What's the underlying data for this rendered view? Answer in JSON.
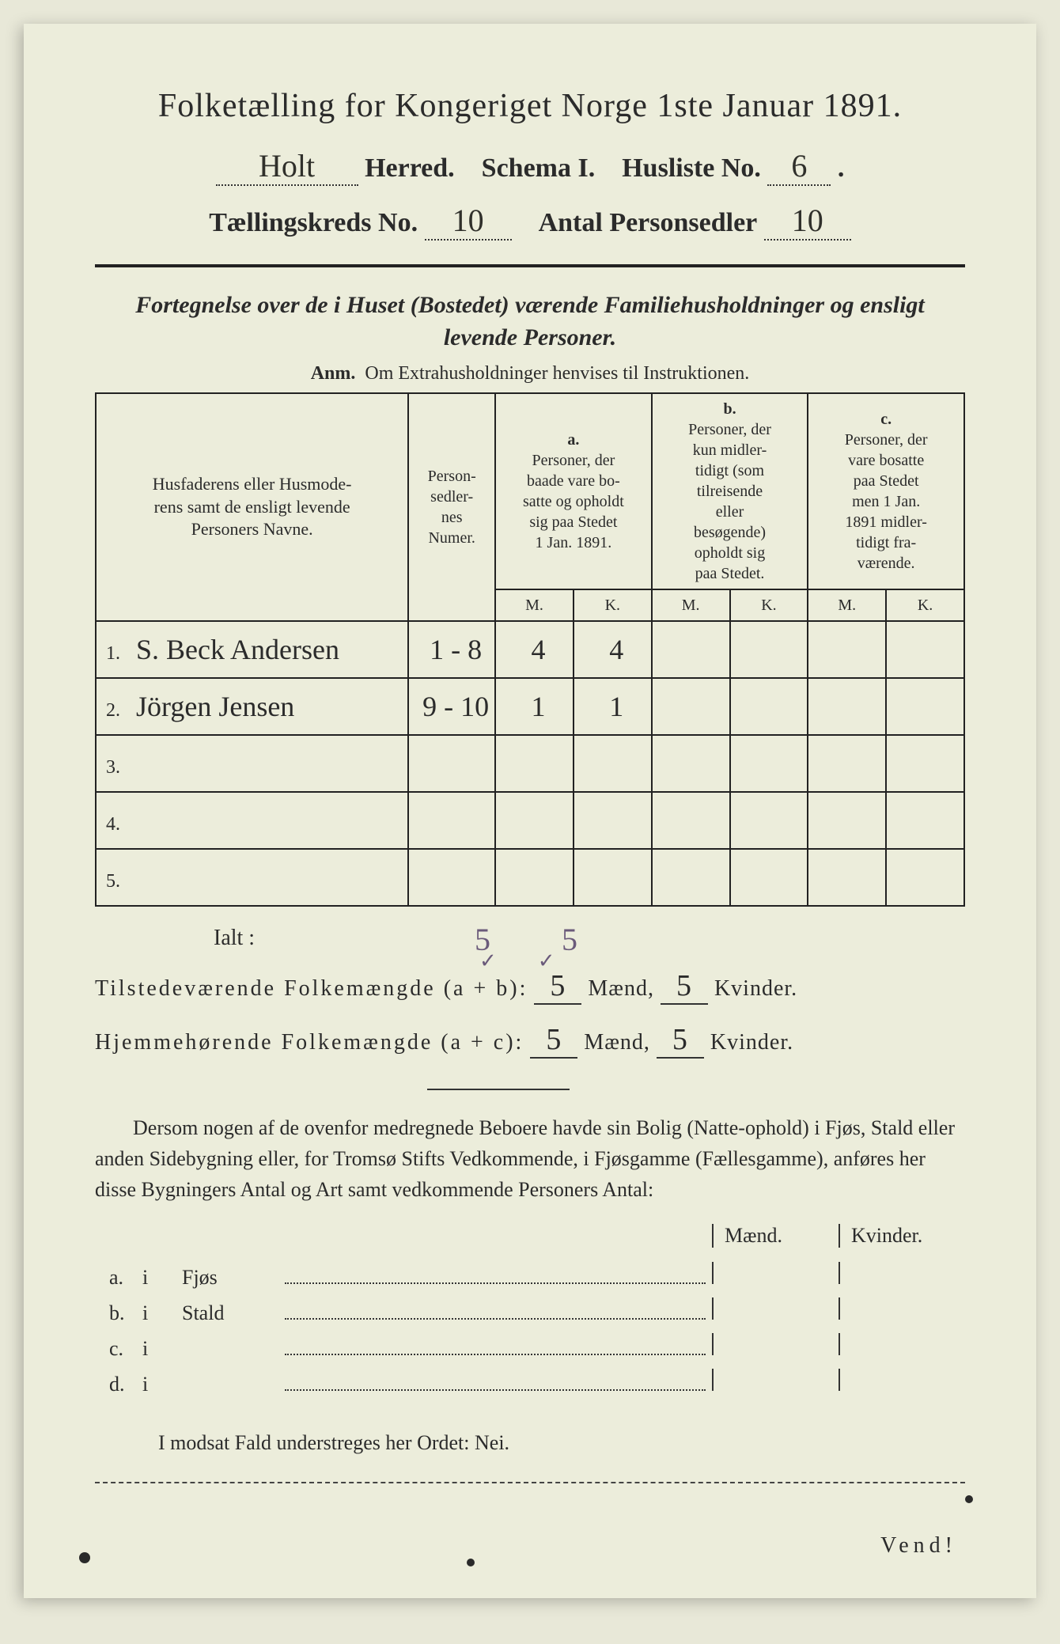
{
  "title": "Folketælling for Kongeriget Norge 1ste Januar 1891.",
  "herred_value": "Holt",
  "herred_label": "Herred.",
  "schema_label": "Schema I.",
  "husliste_label": "Husliste No.",
  "husliste_no": "6",
  "kreds_label": "Tællingskreds No.",
  "kreds_no": "10",
  "antal_label": "Antal Personsedler",
  "antal_no": "10",
  "section_heading_1": "Fortegnelse over de i Huset (Bostedet) værende Familiehusholdninger og ensligt",
  "section_heading_2": "levende Personer.",
  "anm_bold": "Anm.",
  "anm_text": "Om Extrahusholdninger henvises til Instruktionen.",
  "table": {
    "head_name_1": "Husfaderens eller Husmode-",
    "head_name_2": "rens samt de ensligt levende",
    "head_name_3": "Personers Navne.",
    "head_num_1": "Person-",
    "head_num_2": "sedler-",
    "head_num_3": "nes",
    "head_num_4": "Numer.",
    "col_a_label": "a.",
    "col_a_1": "Personer, der",
    "col_a_2": "baade vare bo-",
    "col_a_3": "satte og opholdt",
    "col_a_4": "sig paa Stedet",
    "col_a_5": "1 Jan. 1891.",
    "col_b_label": "b.",
    "col_b_1": "Personer, der",
    "col_b_2": "kun midler-",
    "col_b_3": "tidigt (som",
    "col_b_4": "tilreisende",
    "col_b_5": "eller",
    "col_b_6": "besøgende)",
    "col_b_7": "opholdt sig",
    "col_b_8": "paa Stedet.",
    "col_c_label": "c.",
    "col_c_1": "Personer, der",
    "col_c_2": "vare bosatte",
    "col_c_3": "paa Stedet",
    "col_c_4": "men 1 Jan.",
    "col_c_5": "1891 midler-",
    "col_c_6": "tidigt fra-",
    "col_c_7": "værende.",
    "m": "M.",
    "k": "K.",
    "rows": [
      {
        "num": "1.",
        "name": "S. Beck Andersen",
        "pers": "1 - 8",
        "am": "4",
        "ak": "4",
        "bm": "",
        "bk": "",
        "cm": "",
        "ck": ""
      },
      {
        "num": "2.",
        "name": "Jörgen Jensen",
        "pers": "9 - 10",
        "am": "1",
        "ak": "1",
        "bm": "",
        "bk": "",
        "cm": "",
        "ck": ""
      },
      {
        "num": "3.",
        "name": "",
        "pers": "",
        "am": "",
        "ak": "",
        "bm": "",
        "bk": "",
        "cm": "",
        "ck": ""
      },
      {
        "num": "4.",
        "name": "",
        "pers": "",
        "am": "",
        "ak": "",
        "bm": "",
        "bk": "",
        "cm": "",
        "ck": ""
      },
      {
        "num": "5.",
        "name": "",
        "pers": "",
        "am": "",
        "ak": "",
        "bm": "",
        "bk": "",
        "cm": "",
        "ck": ""
      }
    ]
  },
  "ialt_label": "Ialt :",
  "ialt_figs": "5 5",
  "sum1_label": "Tilstedeværende Folkemængde (a + b):",
  "sum2_label": "Hjemmehørende Folkemængde (a + c):",
  "maend": "Mænd,",
  "kvinder": "Kvinder.",
  "sum_m": "5",
  "sum_k": "5",
  "para_text": "Dersom nogen af de ovenfor medregnede Beboere havde sin Bolig (Natte-ophold) i Fjøs, Stald eller anden Sidebygning eller, for Tromsø Stifts Vedkommende, i Fjøsgamme (Fællesgamme), anføres her disse Bygningers Antal og Art samt vedkommende Personers Antal:",
  "mk_m": "Mænd.",
  "mk_k": "Kvinder.",
  "ab": [
    {
      "letter": "a.",
      "i": "i",
      "label": "Fjøs"
    },
    {
      "letter": "b.",
      "i": "i",
      "label": "Stald"
    },
    {
      "letter": "c.",
      "i": "i",
      "label": ""
    },
    {
      "letter": "d.",
      "i": "i",
      "label": ""
    }
  ],
  "nei": "I modsat Fald understreges her Ordet: Nei.",
  "vend": "Vend!",
  "colors": {
    "paper": "#eceddb",
    "ink": "#2b2b2b",
    "pencil": "#6a5a7a"
  }
}
